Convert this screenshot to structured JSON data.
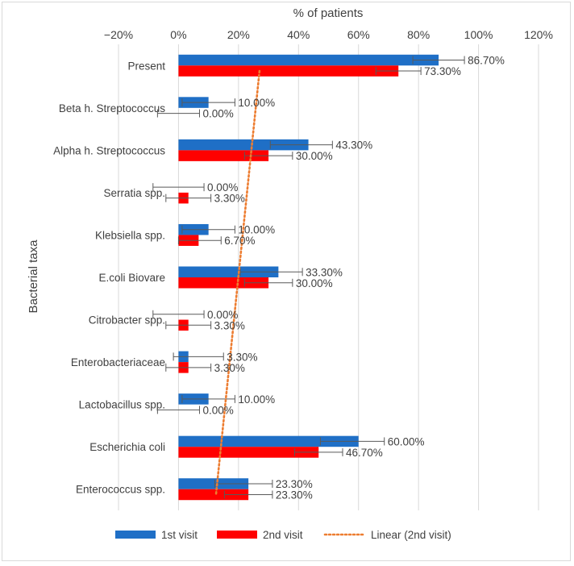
{
  "chart_data": {
    "type": "bar",
    "orientation": "horizontal",
    "title": "",
    "xlabel": "% of patients",
    "ylabel": "Bacterial taxa",
    "xlim": [
      -20,
      120
    ],
    "x_ticks": [
      "−20%",
      "0%",
      "20%",
      "40%",
      "60%",
      "80%",
      "100%",
      "120%"
    ],
    "x_tick_values": [
      -20,
      0,
      20,
      40,
      60,
      80,
      100,
      120
    ],
    "grid": true,
    "legend_position": "bottom",
    "categories": [
      "Present",
      "Beta h. Streptococcus",
      "Alpha h. Streptococcus",
      "Serratia spp.",
      "Klebsiella spp.",
      "E.coli Biovare",
      "Citrobacter spp.",
      "Enterobacteriaceae",
      "Lactobacillus spp.",
      "Escherichia coli",
      "Enterococcus spp."
    ],
    "series": [
      {
        "name": "1st visit",
        "color": "#1f6fc6",
        "values": [
          86.7,
          10.0,
          43.3,
          0.0,
          10.0,
          33.3,
          0.0,
          3.3,
          10.0,
          60.0,
          23.3
        ],
        "labels": [
          "86.70%",
          "10.00%",
          "43.30%",
          "0.00%",
          "10.00%",
          "33.30%",
          "0.00%",
          "3.30%",
          "10.00%",
          "60.00%",
          "23.30%"
        ],
        "err_minus": [
          8.6,
          8.8,
          12.7,
          8.5,
          8.8,
          12.7,
          8.5,
          5.0,
          8.8,
          12.7,
          11.2
        ],
        "err_plus": [
          8.6,
          8.8,
          8.0,
          8.5,
          8.8,
          8.0,
          8.5,
          11.7,
          8.8,
          8.6,
          8.0
        ]
      },
      {
        "name": "2nd visit",
        "color": "#ff0000",
        "values": [
          73.3,
          0.0,
          30.0,
          3.3,
          6.7,
          30.0,
          3.3,
          3.3,
          0.0,
          46.7,
          23.3
        ],
        "labels": [
          "73.30%",
          "0.00%",
          "30.00%",
          "3.30%",
          "6.70%",
          "30.00%",
          "3.30%",
          "3.30%",
          "0.00%",
          "46.70%",
          "23.30%"
        ],
        "err_minus": [
          7.5,
          7.0,
          8.0,
          7.5,
          6.7,
          8.0,
          7.5,
          7.5,
          7.0,
          8.0,
          8.0
        ],
        "err_plus": [
          7.5,
          7.0,
          8.0,
          7.5,
          7.5,
          8.0,
          7.5,
          7.5,
          7.0,
          8.0,
          8.0
        ]
      }
    ],
    "trendline": {
      "name": "Linear (2nd visit)",
      "series": "2nd visit",
      "color": "#ed7d31",
      "start_value": 27.0,
      "end_value": 12.5
    }
  }
}
